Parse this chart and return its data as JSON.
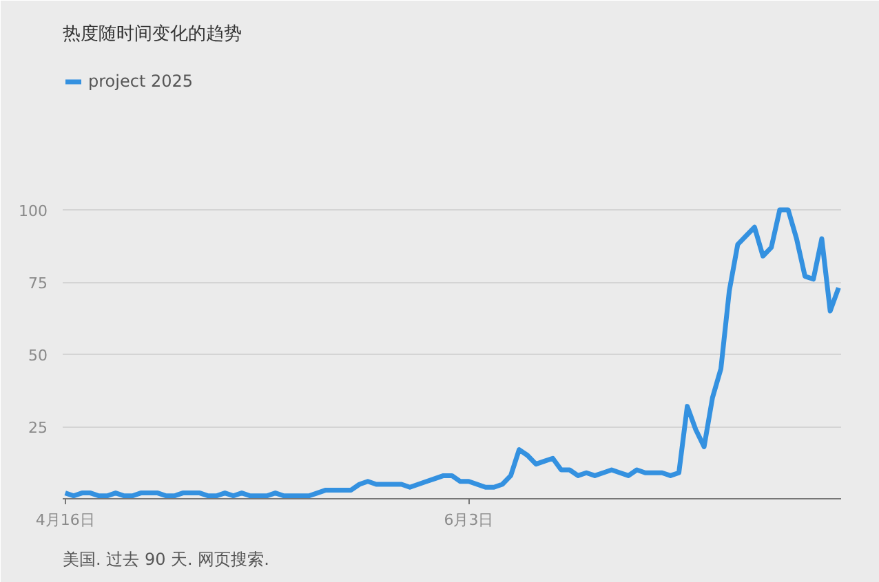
{
  "chart_data": {
    "type": "line",
    "title": "热度随时间变化的趋势",
    "categories": [
      "4月16日",
      null,
      null,
      null,
      null,
      null,
      null,
      null,
      null,
      null,
      null,
      null,
      null,
      null,
      null,
      null,
      null,
      null,
      null,
      null,
      null,
      null,
      null,
      null,
      null,
      null,
      null,
      null,
      null,
      null,
      null,
      null,
      null,
      null,
      null,
      null,
      null,
      null,
      null,
      null,
      null,
      null,
      null,
      null,
      null,
      null,
      null,
      null,
      "6月3日",
      null,
      null,
      null,
      null,
      null,
      null,
      null,
      null,
      null,
      null,
      null,
      null,
      null,
      null,
      null,
      null,
      null,
      null,
      null,
      null,
      null,
      null,
      null,
      null,
      null,
      null,
      null,
      null,
      null,
      null,
      null,
      null,
      null,
      null,
      null,
      null,
      null,
      null,
      null,
      null,
      null,
      null,
      null,
      null
    ],
    "series": [
      {
        "name": "project 2025",
        "color": "#3491e0",
        "values": [
          2,
          1,
          2,
          2,
          1,
          1,
          2,
          1,
          1,
          2,
          2,
          2,
          1,
          1,
          2,
          2,
          2,
          1,
          1,
          2,
          1,
          2,
          1,
          1,
          1,
          2,
          1,
          1,
          1,
          1,
          2,
          3,
          3,
          3,
          3,
          5,
          6,
          5,
          5,
          5,
          5,
          4,
          5,
          6,
          7,
          8,
          8,
          6,
          6,
          5,
          4,
          4,
          5,
          8,
          17,
          15,
          12,
          13,
          14,
          10,
          10,
          8,
          9,
          8,
          9,
          10,
          9,
          8,
          10,
          9,
          9,
          9,
          8,
          9,
          32,
          24,
          18,
          35,
          45,
          72,
          88,
          91,
          94,
          84,
          87,
          100,
          100,
          90,
          77,
          76,
          90,
          65,
          73
        ]
      }
    ],
    "ylim": [
      0,
      150
    ],
    "yticks": [
      25,
      50,
      75,
      100
    ],
    "grid": "y",
    "legend": "top left",
    "marker": "none",
    "line_style": "solid",
    "annotations": [
      "美国. 过去 90 天. 网页搜索."
    ]
  }
}
